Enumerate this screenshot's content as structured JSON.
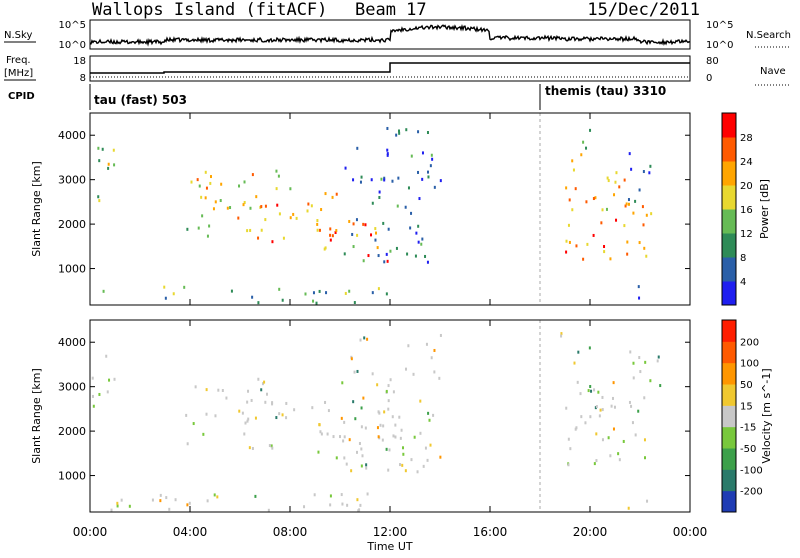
{
  "header": {
    "station": "Wallops Island (fitACF)",
    "beam": "Beam 17",
    "date": "15/Dec/2011"
  },
  "summary": {
    "nsky_label": "N.Sky",
    "nsearch_label": "N.Search",
    "noise_ticks": [
      "10^5",
      "10^0"
    ],
    "freq_label": "Freq.",
    "freq_unit": "[MHz]",
    "freq_ticks": [
      "18",
      "8"
    ],
    "nave_label": "Nave",
    "nave_ticks": [
      "80",
      "0"
    ],
    "cpid_label": "CPID",
    "programs": [
      {
        "name": "tau (fast) 503",
        "start_hour": 0
      },
      {
        "name": "themis (tau) 3310",
        "start_hour": 18
      }
    ]
  },
  "chart_data": [
    {
      "type": "heatmap",
      "title": "",
      "xlabel": "Time UT",
      "ylabel": "Slant Range [km]",
      "xlim": [
        0,
        24
      ],
      "ylim": [
        180,
        4500
      ],
      "x_tick_labels": [
        "00:00",
        "04:00",
        "08:00",
        "12:00",
        "16:00",
        "20:00",
        "00:00"
      ],
      "x_tick_hours": [
        0,
        4,
        8,
        12,
        16,
        20,
        24
      ],
      "y_ticks": [
        1000,
        2000,
        3000,
        4000
      ],
      "colorbar": {
        "label": "Power [dB]",
        "ticks": [
          "4",
          "8",
          "12",
          "16",
          "20",
          "24",
          "28"
        ],
        "levels": [
          0,
          4,
          8,
          12,
          16,
          20,
          24,
          28,
          32
        ],
        "colors": [
          "#1f1ff0",
          "#2a5fa8",
          "#2e8b57",
          "#66bb55",
          "#e8d830",
          "#ffa500",
          "#ff5a00",
          "#ff0000"
        ]
      }
    },
    {
      "type": "heatmap",
      "title": "",
      "xlabel": "Time UT",
      "ylabel": "Slant Range [km]",
      "xlim": [
        0,
        24
      ],
      "ylim": [
        180,
        4500
      ],
      "x_tick_labels": [
        "00:00",
        "04:00",
        "08:00",
        "12:00",
        "16:00",
        "20:00",
        "00:00"
      ],
      "y_ticks": [
        1000,
        2000,
        3000,
        4000
      ],
      "colorbar": {
        "label": "Velocity [m s^-1]",
        "ticks": [
          "200",
          "100",
          "50",
          "15",
          "-15",
          "-50",
          "-100",
          "-200"
        ],
        "colors": [
          "#1f3cb4",
          "#2a7a6a",
          "#3ca04a",
          "#78c83c",
          "#c8c8c8",
          "#f0c830",
          "#ff9600",
          "#ff5a00",
          "#ff1e00"
        ]
      }
    }
  ],
  "echo_regions": [
    {
      "t0": 0.0,
      "t1": 1.0,
      "r0": 2300,
      "r1": 3800,
      "peak": 22
    },
    {
      "t0": 3.8,
      "t1": 4.8,
      "r0": 1700,
      "r1": 2200,
      "peak": 16
    },
    {
      "t0": 3.8,
      "t1": 8.0,
      "r0": 2100,
      "r1": 3200,
      "peak": 26
    },
    {
      "t0": 6.0,
      "t1": 10.0,
      "r0": 1600,
      "r1": 2700,
      "peak": 30
    },
    {
      "t0": 9.0,
      "t1": 12.0,
      "r0": 1100,
      "r1": 2200,
      "peak": 30
    },
    {
      "t0": 10.0,
      "t1": 14.0,
      "r0": 1000,
      "r1": 4200,
      "peak": 14
    },
    {
      "t0": 19.0,
      "t1": 22.5,
      "r0": 1200,
      "r1": 2600,
      "peak": 30
    },
    {
      "t0": 19.0,
      "t1": 21.5,
      "r0": 2300,
      "r1": 3300,
      "peak": 28
    },
    {
      "t0": 18.8,
      "t1": 20.0,
      "r0": 3400,
      "r1": 4200,
      "peak": 22
    },
    {
      "t0": 21.5,
      "t1": 22.8,
      "r0": 2500,
      "r1": 3800,
      "peak": 14
    },
    {
      "t0": 0.5,
      "t1": 12.0,
      "r0": 180,
      "r1": 600,
      "peak": 18
    },
    {
      "t0": 21.5,
      "t1": 22.5,
      "r0": 180,
      "r1": 600,
      "peak": 10
    }
  ]
}
